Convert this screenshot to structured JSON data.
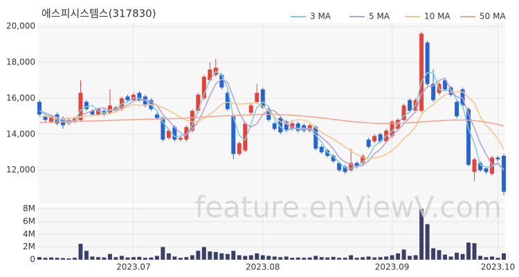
{
  "chart_data": {
    "type": "candlestick",
    "title": "에스피시스템스(317830)",
    "watermark": "feature.enViewV.com",
    "categories": [
      null,
      null,
      null,
      null,
      null,
      null,
      null,
      null,
      null,
      null,
      null,
      null,
      null,
      null,
      null,
      null,
      "2023.07",
      null,
      null,
      null,
      null,
      null,
      null,
      null,
      null,
      null,
      null,
      null,
      null,
      null,
      null,
      null,
      null,
      null,
      null,
      null,
      null,
      null,
      "2023.08",
      null,
      null,
      null,
      null,
      null,
      null,
      null,
      null,
      null,
      null,
      null,
      null,
      null,
      null,
      null,
      null,
      null,
      null,
      null,
      null,
      null,
      "2023.09",
      null,
      null,
      null,
      null,
      null,
      null,
      null,
      null,
      null,
      null,
      null,
      null,
      null,
      null,
      null,
      null,
      null,
      "2023.10",
      null
    ],
    "open": [
      15800,
      15000,
      14700,
      15100,
      14900,
      14600,
      14700,
      14800,
      15800,
      15300,
      15100,
      15300,
      15200,
      15300,
      15400,
      16100,
      15900,
      16300,
      16100,
      15900,
      15100,
      14900,
      13800,
      14400,
      13700,
      13700,
      14200,
      15300,
      16000,
      17000,
      17300,
      17300,
      16300,
      15000,
      12900,
      13100,
      15200,
      15800,
      16500,
      15400,
      14600,
      14900,
      14700,
      14300,
      14600,
      14500,
      14200,
      14400,
      13300,
      13100,
      12800,
      12400,
      12200,
      12000,
      12400,
      12400,
      13700,
      13600,
      14000,
      13600,
      13900,
      14300,
      14800,
      15900,
      15300,
      15300,
      19100,
      16800,
      16300,
      17000,
      16600,
      15800,
      16500,
      15400,
      11900,
      12400,
      12100,
      11800,
      12700,
      12800
    ],
    "high": [
      15900,
      15100,
      15100,
      15200,
      15000,
      14900,
      15000,
      17000,
      15900,
      15400,
      15500,
      15400,
      16500,
      15600,
      16100,
      16200,
      16300,
      16400,
      16200,
      16000,
      15200,
      15000,
      14300,
      14500,
      13900,
      14500,
      15400,
      16300,
      17300,
      18000,
      18200,
      17400,
      16400,
      15100,
      13600,
      14700,
      15700,
      16800,
      16600,
      15500,
      14700,
      15000,
      14800,
      14700,
      14700,
      14600,
      14600,
      14500,
      13400,
      13200,
      12900,
      12500,
      12300,
      13200,
      12500,
      12900,
      13800,
      14000,
      14100,
      14300,
      14800,
      14900,
      15700,
      16000,
      16000,
      19700,
      19200,
      17600,
      16900,
      17100,
      16700,
      15900,
      16600,
      15500,
      12700,
      12500,
      12200,
      12800,
      12800,
      12900
    ],
    "low": [
      15000,
      14700,
      14600,
      14500,
      14300,
      14500,
      14600,
      14700,
      15300,
      15000,
      15000,
      15000,
      15100,
      15200,
      15300,
      15800,
      15800,
      15800,
      15500,
      15300,
      14800,
      13600,
      13700,
      13600,
      13600,
      13600,
      14100,
      15200,
      15900,
      16900,
      17200,
      16500,
      15300,
      12600,
      12800,
      13000,
      15100,
      15700,
      15400,
      14700,
      14200,
      14000,
      14100,
      14200,
      14100,
      14100,
      14100,
      13100,
      12900,
      12700,
      12400,
      11900,
      11800,
      11900,
      12100,
      12300,
      13200,
      13500,
      13500,
      13500,
      13800,
      14200,
      14700,
      15200,
      15200,
      15200,
      16700,
      15800,
      16200,
      16400,
      16100,
      14900,
      15500,
      12200,
      11400,
      11900,
      11800,
      11700,
      12500,
      10600
    ],
    "close": [
      15100,
      14800,
      15000,
      14600,
      14500,
      14800,
      14900,
      16300,
      15400,
      15100,
      15400,
      15100,
      15600,
      15500,
      16000,
      15900,
      16200,
      15900,
      15600,
      15400,
      14900,
      13700,
      14200,
      13700,
      13800,
      14400,
      15300,
      16200,
      17200,
      17600,
      17700,
      16600,
      15400,
      12900,
      13500,
      14600,
      15600,
      16300,
      15500,
      14800,
      14300,
      14100,
      14200,
      14600,
      14200,
      14200,
      14500,
      13200,
      13000,
      12800,
      12500,
      12000,
      11900,
      12400,
      12200,
      12800,
      13300,
      13900,
      13600,
      14200,
      14700,
      14800,
      15600,
      15300,
      15900,
      19600,
      16800,
      15900,
      16800,
      16500,
      16200,
      15000,
      15600,
      12300,
      12600,
      12000,
      11900,
      12700,
      12600,
      10800
    ],
    "up_color": "#e8413a",
    "down_color": "#2563d6",
    "series": [
      {
        "name": "3 MA",
        "color": "#7fd0d4",
        "values": [
          15300,
          15100,
          14970,
          14800,
          14700,
          14633,
          14733,
          15333,
          15533,
          15600,
          15300,
          15200,
          15367,
          15400,
          15700,
          15800,
          16033,
          16000,
          15900,
          15633,
          15300,
          14667,
          14267,
          13867,
          13900,
          13967,
          14500,
          15300,
          16233,
          17000,
          17500,
          17300,
          16567,
          14967,
          13933,
          13667,
          14567,
          15500,
          15800,
          15533,
          14867,
          14400,
          14200,
          14300,
          14333,
          14333,
          14300,
          13967,
          13567,
          13000,
          12767,
          12433,
          12133,
          12100,
          12167,
          12467,
          12767,
          13333,
          13600,
          13900,
          14167,
          14567,
          15033,
          15233,
          15600,
          16933,
          17433,
          17433,
          16500,
          16400,
          16500,
          15900,
          15600,
          14300,
          13500,
          12300,
          12167,
          12200,
          12400,
          12033
        ]
      },
      {
        "name": "5 MA",
        "color": "#b7a1d6",
        "values": [
          15300,
          15200,
          15050,
          14950,
          14800,
          14740,
          14760,
          15020,
          15180,
          15300,
          15420,
          15460,
          15320,
          15340,
          15520,
          15620,
          15840,
          15900,
          15920,
          15800,
          15600,
          15100,
          14760,
          14380,
          14060,
          13960,
          14280,
          14680,
          15380,
          16140,
          16800,
          17060,
          16900,
          16040,
          15220,
          14600,
          14400,
          14580,
          15100,
          15360,
          15300,
          15000,
          14580,
          14400,
          14280,
          14260,
          14340,
          14140,
          13820,
          13540,
          13200,
          12700,
          12440,
          12320,
          12200,
          12260,
          12520,
          12920,
          13160,
          13560,
          13940,
          14240,
          14580,
          14920,
          15260,
          16240,
          16640,
          16700,
          17000,
          17120,
          16440,
          16080,
          16020,
          15120,
          14340,
          13500,
          12880,
          12300,
          12360,
          12000
        ]
      },
      {
        "name": "10 MA",
        "color": "#f2c68d",
        "values": [
          15000,
          15000,
          14950,
          14900,
          14850,
          14900,
          14900,
          14950,
          15000,
          15050,
          15080,
          15110,
          15170,
          15260,
          15410,
          15520,
          15650,
          15610,
          15630,
          15660,
          15610,
          15470,
          15330,
          15150,
          14930,
          14780,
          14690,
          14720,
          14880,
          15100,
          15380,
          15670,
          15790,
          15710,
          15680,
          15700,
          15730,
          15740,
          15570,
          15290,
          14950,
          14700,
          14580,
          14750,
          14820,
          14780,
          14670,
          14360,
          14110,
          13910,
          13730,
          13520,
          13290,
          13070,
          12870,
          12730,
          12610,
          12680,
          12740,
          12880,
          13100,
          13380,
          13750,
          14040,
          14410,
          15090,
          15440,
          15640,
          15960,
          16190,
          16340,
          16360,
          16360,
          16060,
          15730,
          14970,
          14480,
          14160,
          13740,
          13170
        ]
      },
      {
        "name": "50 MA",
        "color": "#f5a590",
        "values": [
          14650,
          14660,
          14670,
          14680,
          14690,
          14700,
          14710,
          14720,
          14730,
          14740,
          14750,
          14760,
          14770,
          14780,
          14790,
          14800,
          14810,
          14820,
          14830,
          14840,
          14840,
          14850,
          14860,
          14870,
          14880,
          14900,
          14920,
          14940,
          14960,
          14980,
          15000,
          15020,
          15030,
          15040,
          15060,
          15070,
          15080,
          15090,
          15100,
          15100,
          15100,
          15090,
          15080,
          15060,
          15040,
          15010,
          14980,
          14950,
          14910,
          14870,
          14830,
          14790,
          14750,
          14710,
          14680,
          14650,
          14630,
          14610,
          14600,
          14600,
          14600,
          14610,
          14620,
          14640,
          14660,
          14690,
          14710,
          14730,
          14750,
          14770,
          14780,
          14790,
          14790,
          14780,
          14760,
          14720,
          14670,
          14610,
          14550,
          14450
        ]
      }
    ],
    "ylim": [
      10100,
      20200
    ],
    "yticks": [
      {
        "value": 12000,
        "label": "12,000"
      },
      {
        "value": 14000,
        "label": "14,000"
      },
      {
        "value": 16000,
        "label": "16,000"
      },
      {
        "value": 18000,
        "label": "18,000"
      },
      {
        "value": 20000,
        "label": "20,000"
      }
    ],
    "volume": {
      "color": "#3d3f6b",
      "ylim": [
        0,
        8400000
      ],
      "yticks": [
        0,
        {
          "value": 2000000,
          "label": "2M"
        },
        {
          "value": 4000000,
          "label": "4M"
        },
        {
          "value": 6000000,
          "label": "6M"
        },
        {
          "value": 8000000,
          "label": "8M"
        }
      ],
      "values": [
        400000,
        300000,
        350000,
        300000,
        250000,
        200000,
        300000,
        2500000,
        1400000,
        500000,
        400000,
        350000,
        900000,
        400000,
        600000,
        350000,
        400000,
        450000,
        300000,
        350000,
        600000,
        2000000,
        1000000,
        500000,
        300000,
        400000,
        700000,
        1400000,
        2000000,
        1300000,
        1200000,
        1000000,
        900000,
        1400000,
        700000,
        600000,
        700000,
        1000000,
        700000,
        600000,
        500000,
        400000,
        500000,
        300000,
        350000,
        300000,
        350000,
        600000,
        400000,
        350000,
        450000,
        300000,
        300000,
        700000,
        300000,
        400000,
        500000,
        350000,
        400000,
        500000,
        700000,
        1000000,
        1600000,
        600000,
        700000,
        8000000,
        5600000,
        1800000,
        1500000,
        800000,
        500000,
        1100000,
        900000,
        2700000,
        2600000,
        600000,
        400000,
        500000,
        300000,
        1000000
      ]
    },
    "grid": true
  }
}
